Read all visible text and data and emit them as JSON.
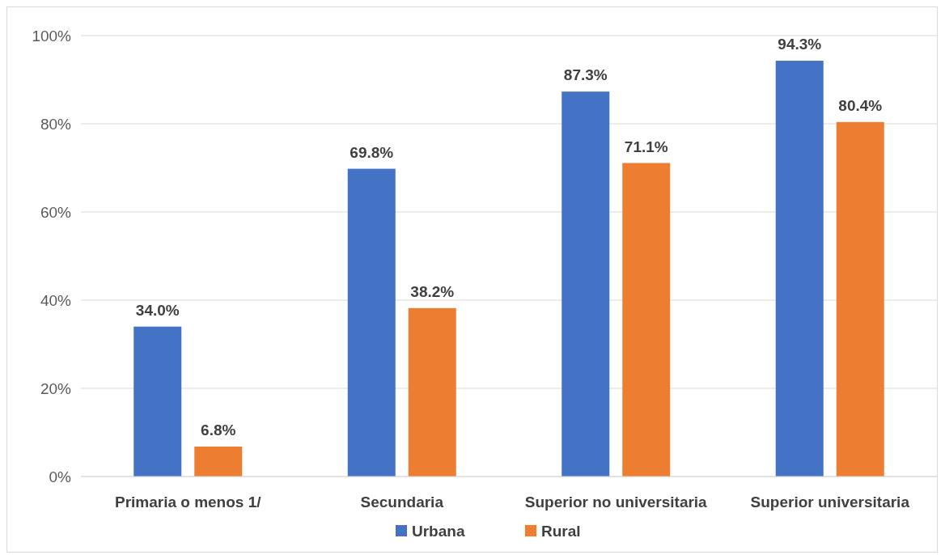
{
  "chart_data": {
    "type": "bar",
    "categories": [
      "Primaria o menos 1/",
      "Secundaria",
      "Superior no universitaria",
      "Superior universitaria"
    ],
    "series": [
      {
        "name": "Urbana",
        "color": "#4472c4",
        "values": [
          34.0,
          69.8,
          87.3,
          94.3
        ],
        "value_labels": [
          "34.0%",
          "69.8%",
          "87.3%",
          "94.3%"
        ]
      },
      {
        "name": "Rural",
        "color": "#ed7d31",
        "values": [
          6.8,
          38.2,
          71.1,
          80.4
        ],
        "value_labels": [
          "6.8%",
          "38.2%",
          "71.1%",
          "80.4%"
        ]
      }
    ],
    "ylim": [
      0,
      100
    ],
    "yticks": [
      {
        "value": 0,
        "label": "0%"
      },
      {
        "value": 20,
        "label": "20%"
      },
      {
        "value": 40,
        "label": "40%"
      },
      {
        "value": 60,
        "label": "60%"
      },
      {
        "value": 80,
        "label": "80%"
      },
      {
        "value": 100,
        "label": "100%"
      }
    ],
    "grid": "y",
    "legend": "bottom"
  }
}
